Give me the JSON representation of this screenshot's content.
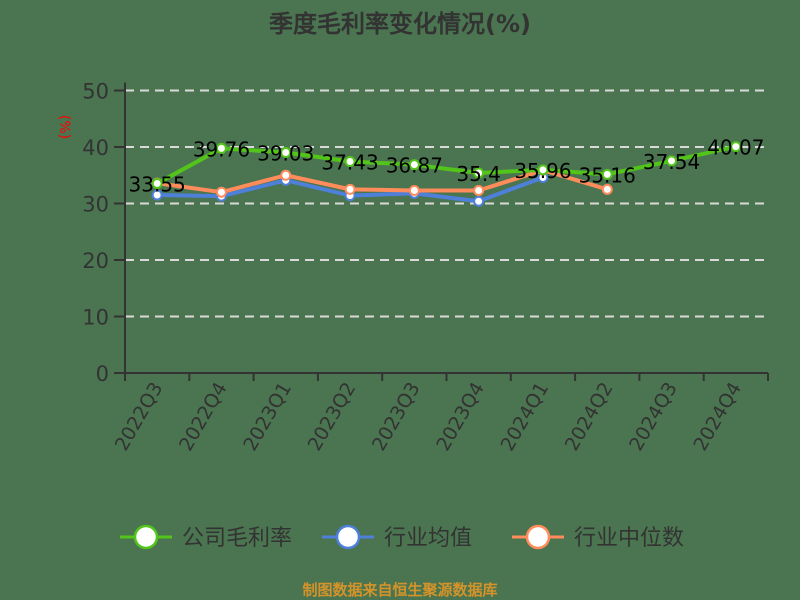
{
  "title": "季度毛利率变化情况(%)",
  "source": "制图数据来自恒生聚源数据库",
  "chart_data": {
    "type": "line",
    "title": "季度毛利率变化情况(%)",
    "xlabel": "",
    "ylabel": "(%)",
    "ylim": [
      0,
      50
    ],
    "yticks": [
      0,
      10,
      20,
      30,
      40,
      50
    ],
    "grid": true,
    "legend_position": "bottom",
    "categories": [
      "2022Q3",
      "2022Q4",
      "2023Q1",
      "2023Q2",
      "2023Q3",
      "2023Q4",
      "2024Q1",
      "2024Q2",
      "2024Q3",
      "2024Q4"
    ],
    "series": [
      {
        "name": "公司毛利率",
        "color": "#52c41a",
        "values": [
          33.55,
          39.76,
          39.03,
          37.43,
          36.87,
          35.4,
          35.96,
          35.16,
          37.54,
          40.07
        ],
        "labels_shown": true
      },
      {
        "name": "行业均值",
        "color": "#4e7fd9",
        "values": [
          31.5,
          31.3,
          34.1,
          31.4,
          31.8,
          30.4,
          34.6,
          null,
          null,
          null
        ],
        "labels_shown": false
      },
      {
        "name": "行业中位数",
        "color": "#ff8c5a",
        "values": [
          33.6,
          32.0,
          35.0,
          32.5,
          32.3,
          32.3,
          35.9,
          32.5,
          null,
          null
        ],
        "labels_shown": false
      }
    ]
  }
}
